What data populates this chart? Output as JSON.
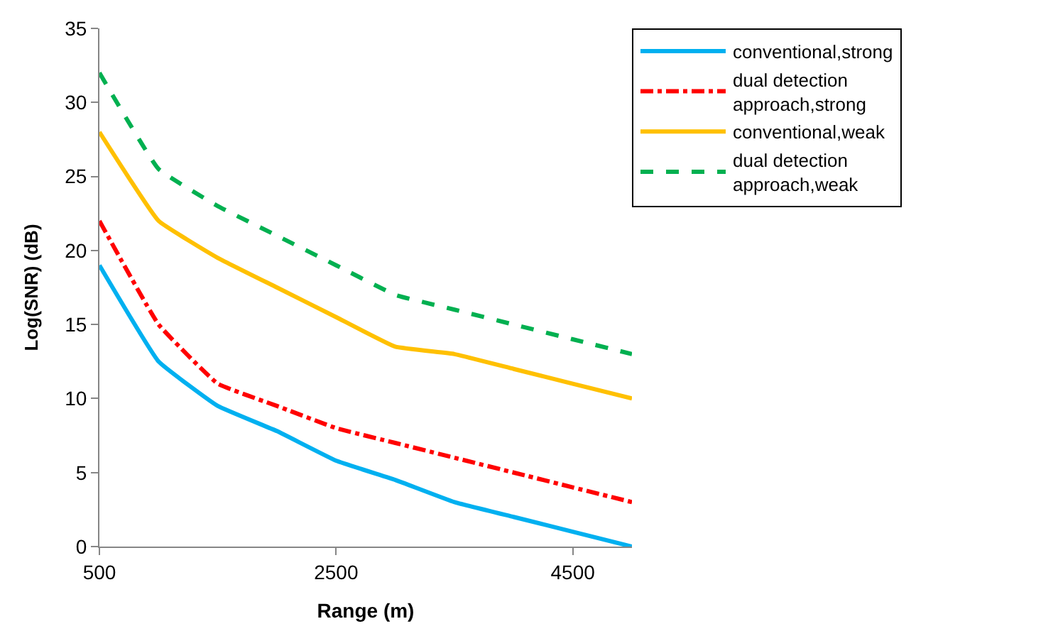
{
  "chart_data": {
    "type": "line",
    "xlabel": "Range (m)",
    "ylabel": "Log(SNR) (dB)",
    "x": [
      500,
      1000,
      1500,
      2000,
      2500,
      3000,
      3500,
      4000,
      4500,
      5000
    ],
    "xlim": [
      500,
      5000
    ],
    "xticks": [
      500,
      2500,
      4500
    ],
    "ylim": [
      0,
      35
    ],
    "yticks": [
      0,
      5,
      10,
      15,
      20,
      25,
      30,
      35
    ],
    "legend": "top right",
    "marker": "none",
    "series": [
      {
        "name": "conventional,strong",
        "color": "#00b0f0",
        "line_style": "solid",
        "values": [
          19,
          12.5,
          9.5,
          7.8,
          5.8,
          4.5,
          3,
          2,
          1,
          0
        ]
      },
      {
        "name": "dual detection approach,strong",
        "color": "#ff0000",
        "line_style": "dashdot",
        "values": [
          22,
          15,
          11,
          9.5,
          8,
          7,
          6,
          5,
          4,
          3
        ]
      },
      {
        "name": "conventional,weak",
        "color": "#ffc000",
        "line_style": "solid",
        "values": [
          28,
          22,
          19.5,
          17.5,
          15.5,
          13.5,
          13,
          12,
          11,
          10
        ]
      },
      {
        "name": "dual detection approach,weak",
        "color": "#00b050",
        "line_style": "dashed",
        "values": [
          32,
          25.5,
          23,
          21,
          19,
          17,
          16,
          15,
          14,
          13
        ]
      }
    ]
  }
}
